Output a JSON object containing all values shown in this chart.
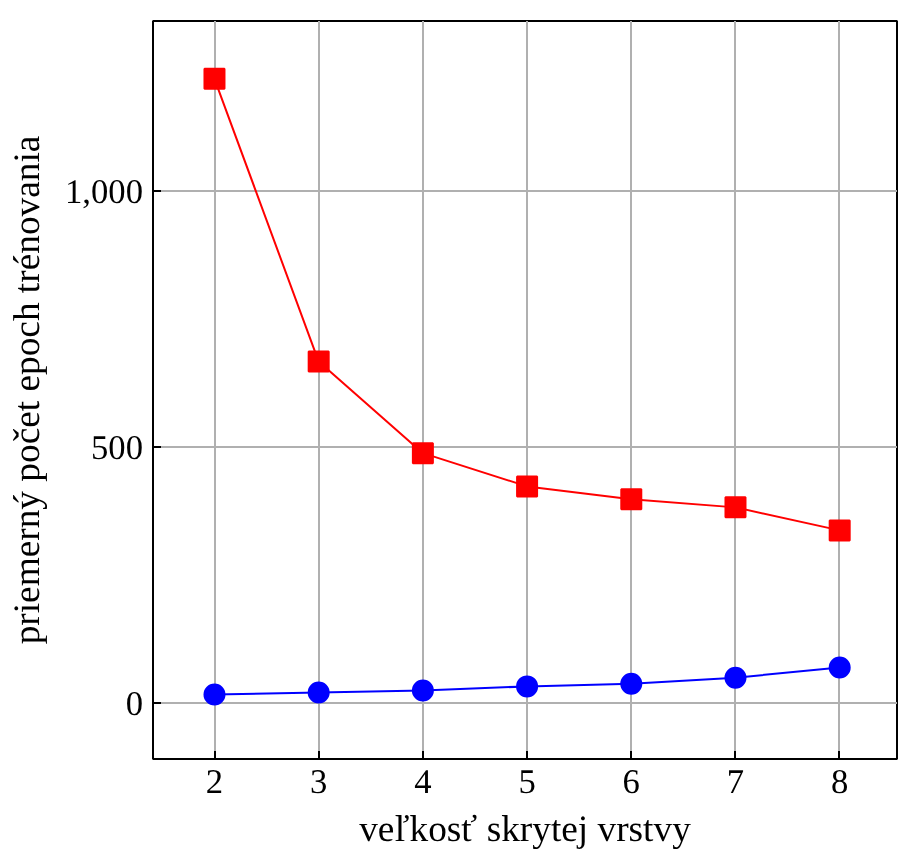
{
  "chart_data": {
    "type": "line",
    "xlabel": "veľkosť skrytej vrstvy",
    "ylabel": "priemerný počet epoch trénovania",
    "x": [
      2,
      3,
      4,
      5,
      6,
      7,
      8
    ],
    "series": [
      {
        "color": "#ff0000",
        "marker": "square",
        "values": [
          1220,
          667,
          488,
          423,
          398,
          382,
          337
        ]
      },
      {
        "color": "#0000ff",
        "marker": "circle",
        "values": [
          16,
          20,
          24,
          32,
          37,
          49,
          69
        ]
      }
    ],
    "xlim": [
      1.41,
      8.55
    ],
    "ylim": [
      -110,
      1333
    ],
    "xticks": [
      2,
      3,
      4,
      5,
      6,
      7,
      8
    ],
    "yticks": [
      0,
      500,
      {
        "value": 1000,
        "label": "1,000"
      }
    ],
    "grid": true
  }
}
